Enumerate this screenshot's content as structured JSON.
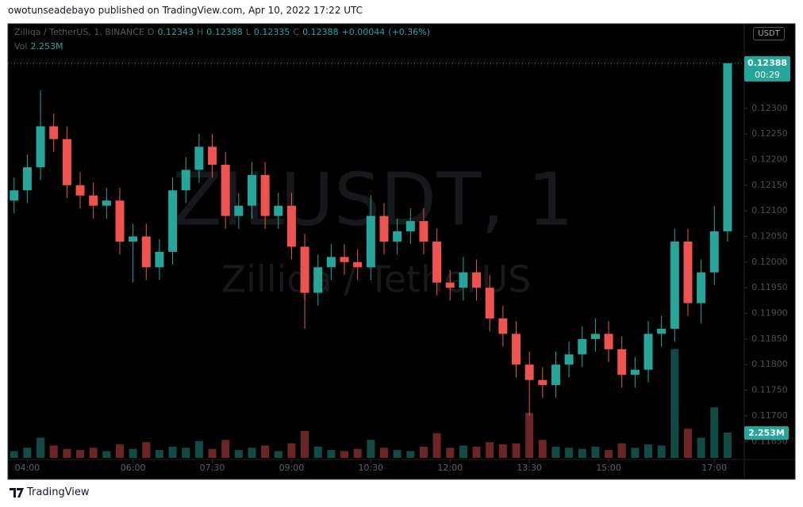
{
  "header": {
    "publisher": "owotunseadebayo published on TradingView.com, Apr 10, 2022 17:22 UTC"
  },
  "footer": {
    "brand": "TradingView"
  },
  "chart_data": {
    "type": "candlestick",
    "title": "ZILUSDT, 1",
    "subtitle": "Zilliqa / TetherUS",
    "symbol": "Zilliqa / TetherUS, 1, BINANCE",
    "currency": "USDT",
    "legend": [
      {
        "key": "O",
        "value": 0.12343
      },
      {
        "key": "H",
        "value": 0.12388
      },
      {
        "key": "L",
        "value": 0.12335
      },
      {
        "key": "C",
        "value": 0.12388
      }
    ],
    "change": {
      "value": 0.00044,
      "label": "+0.00044"
    },
    "change_pct": {
      "value": 0.36,
      "label": "(+0.36%)"
    },
    "volume_legend": {
      "key": "Vol",
      "value": 2.253,
      "label": "2.253M"
    },
    "last_price": 0.12388,
    "countdown": "00:29",
    "up_color": "#26a69a",
    "down_color": "#ef5350",
    "x": [
      "03:45",
      "04:00",
      "04:15",
      "04:30",
      "04:45",
      "05:00",
      "05:15",
      "05:30",
      "05:45",
      "06:00",
      "06:15",
      "06:30",
      "06:45",
      "07:00",
      "07:15",
      "07:30",
      "07:45",
      "08:00",
      "08:15",
      "08:30",
      "08:45",
      "09:00",
      "09:15",
      "09:30",
      "09:45",
      "10:00",
      "10:15",
      "10:30",
      "10:45",
      "11:00",
      "11:15",
      "11:30",
      "11:45",
      "12:00",
      "12:15",
      "12:30",
      "12:45",
      "13:00",
      "13:15",
      "13:30",
      "13:45",
      "14:00",
      "14:15",
      "14:30",
      "14:45",
      "15:00",
      "15:15",
      "15:30",
      "15:45",
      "16:00",
      "16:15",
      "16:30",
      "16:45",
      "17:00",
      "17:15"
    ],
    "open": [
      0.1212,
      0.1214,
      0.12185,
      0.12265,
      0.1224,
      0.1215,
      0.1213,
      0.1211,
      0.1212,
      0.1204,
      0.1205,
      0.1199,
      0.1202,
      0.1214,
      0.1218,
      0.12225,
      0.1219,
      0.1209,
      0.1211,
      0.1217,
      0.1209,
      0.1211,
      0.1203,
      0.1194,
      0.1199,
      0.1201,
      0.12,
      0.1199,
      0.1209,
      0.1204,
      0.1206,
      0.1208,
      0.1204,
      0.1196,
      0.1195,
      0.1198,
      0.1195,
      0.1189,
      0.1186,
      0.118,
      0.1177,
      0.1176,
      0.118,
      0.1182,
      0.1185,
      0.1186,
      0.1183,
      0.1178,
      0.1179,
      0.1186,
      0.1187,
      0.1204,
      0.1192,
      0.1198,
      0.1206
    ],
    "high": [
      0.12165,
      0.1221,
      0.12335,
      0.1229,
      0.12265,
      0.12175,
      0.12155,
      0.12145,
      0.12145,
      0.12075,
      0.12075,
      0.12045,
      0.12165,
      0.12205,
      0.1225,
      0.1225,
      0.12215,
      0.12135,
      0.12195,
      0.12195,
      0.12135,
      0.12135,
      0.12055,
      0.12015,
      0.12035,
      0.12035,
      0.12025,
      0.1213,
      0.12115,
      0.12085,
      0.12105,
      0.12105,
      0.12065,
      0.11985,
      0.1201,
      0.12005,
      0.11975,
      0.11915,
      0.11885,
      0.11825,
      0.11795,
      0.11825,
      0.11845,
      0.11875,
      0.1189,
      0.11885,
      0.11855,
      0.11815,
      0.11885,
      0.11895,
      0.12065,
      0.12065,
      0.12005,
      0.1211,
      0.12388
    ],
    "low": [
      0.12095,
      0.12115,
      0.1216,
      0.12215,
      0.12125,
      0.12105,
      0.12085,
      0.12085,
      0.12015,
      0.1196,
      0.11965,
      0.11965,
      0.11995,
      0.12115,
      0.12155,
      0.12165,
      0.12065,
      0.12065,
      0.12085,
      0.12065,
      0.12065,
      0.12005,
      0.1187,
      0.11915,
      0.11965,
      0.11975,
      0.11965,
      0.11965,
      0.12015,
      0.12015,
      0.12035,
      0.12015,
      0.11935,
      0.11925,
      0.11925,
      0.11925,
      0.11865,
      0.11835,
      0.11775,
      0.117,
      0.11735,
      0.11735,
      0.11775,
      0.11795,
      0.11825,
      0.11805,
      0.11755,
      0.11755,
      0.11765,
      0.11835,
      0.11845,
      0.11895,
      0.1188,
      0.11955,
      0.1204
    ],
    "close": [
      0.1214,
      0.12185,
      0.12265,
      0.1224,
      0.1215,
      0.1213,
      0.1211,
      0.1212,
      0.1204,
      0.1205,
      0.1199,
      0.1202,
      0.1214,
      0.1218,
      0.12225,
      0.1219,
      0.1209,
      0.1211,
      0.1217,
      0.1209,
      0.1211,
      0.1203,
      0.1194,
      0.1199,
      0.1201,
      0.12,
      0.1199,
      0.1209,
      0.1204,
      0.1206,
      0.1208,
      0.1204,
      0.1196,
      0.1195,
      0.1198,
      0.1195,
      0.1189,
      0.1186,
      0.118,
      0.1177,
      0.1176,
      0.118,
      0.1182,
      0.1185,
      0.1186,
      0.1183,
      0.1178,
      0.1179,
      0.1186,
      0.1187,
      0.1204,
      0.1192,
      0.1198,
      0.1206,
      0.12388
    ],
    "volume": [
      0.6,
      0.9,
      1.8,
      1.1,
      0.8,
      0.7,
      0.9,
      0.6,
      1.2,
      0.8,
      1.4,
      0.7,
      1.0,
      0.9,
      1.5,
      0.8,
      1.6,
      0.7,
      0.9,
      1.1,
      0.6,
      1.3,
      2.4,
      1.0,
      0.7,
      0.6,
      0.8,
      1.6,
      0.9,
      0.7,
      0.6,
      1.0,
      2.2,
      0.9,
      1.1,
      1.0,
      1.4,
      1.2,
      1.3,
      4.0,
      1.6,
      1.0,
      0.9,
      0.8,
      1.0,
      0.7,
      1.3,
      0.9,
      1.2,
      1.1,
      9.7,
      2.6,
      1.8,
      4.5,
      2.253
    ],
    "vlim": [
      0,
      12
    ],
    "ylim": [
      0.11618,
      0.12465
    ],
    "yticks": [
      {
        "value": 0.123,
        "label": "0.12300"
      },
      {
        "value": 0.1225,
        "label": "0.12250"
      },
      {
        "value": 0.122,
        "label": "0.12200"
      },
      {
        "value": 0.1215,
        "label": "0.12150"
      },
      {
        "value": 0.121,
        "label": "0.12100"
      },
      {
        "value": 0.1205,
        "label": "0.12050"
      },
      {
        "value": 0.12,
        "label": "0.12000"
      },
      {
        "value": 0.1195,
        "label": "0.11950"
      },
      {
        "value": 0.119,
        "label": "0.11900"
      },
      {
        "value": 0.1185,
        "label": "0.11850"
      },
      {
        "value": 0.118,
        "label": "0.11800"
      },
      {
        "value": 0.1175,
        "label": "0.11750"
      },
      {
        "value": 0.117,
        "label": "0.11700"
      },
      {
        "value": 0.1165,
        "label": "0.11650"
      }
    ],
    "xlim": [
      "03:38",
      "17:34"
    ],
    "xticks": [
      "04:00",
      "06:00",
      "07:30",
      "09:00",
      "10:30",
      "12:00",
      "13:30",
      "15:00",
      "17:00"
    ]
  }
}
